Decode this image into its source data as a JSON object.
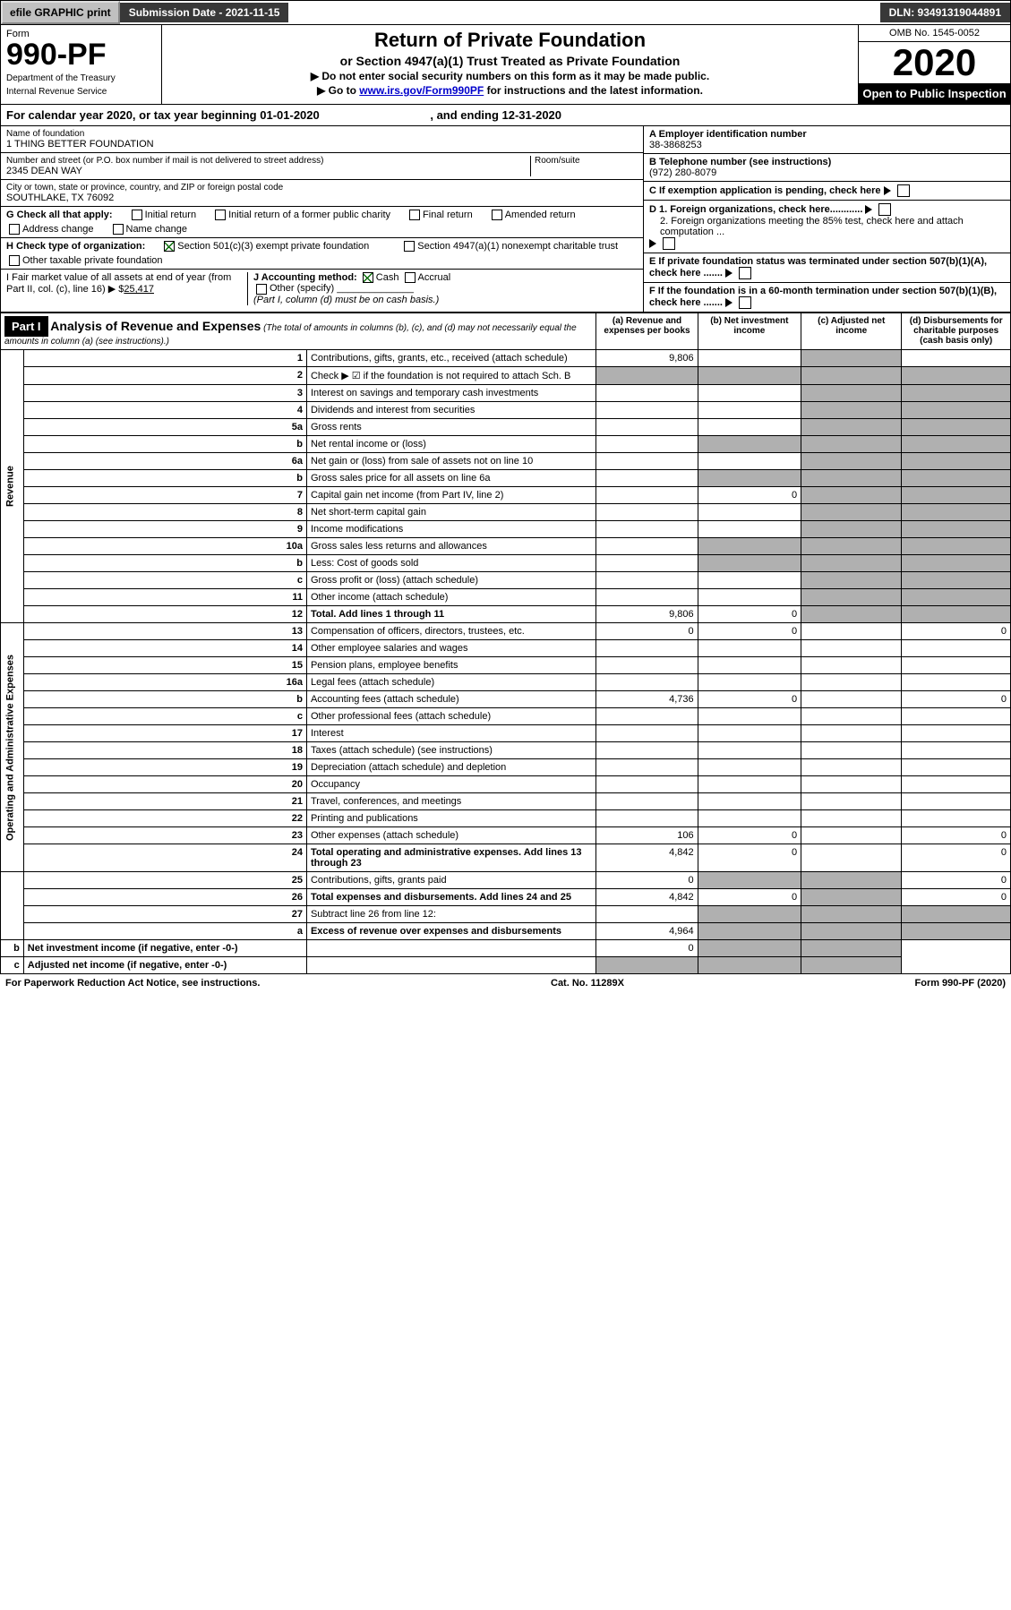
{
  "topbar": {
    "efile": "efile GRAPHIC print",
    "submission": "Submission Date - 2021-11-15",
    "dln": "DLN: 93491319044891"
  },
  "header": {
    "form": "Form",
    "number": "990-PF",
    "dept": "Department of the Treasury",
    "irs": "Internal Revenue Service",
    "title": "Return of Private Foundation",
    "subtitle": "or Section 4947(a)(1) Trust Treated as Private Foundation",
    "note1": "▶ Do not enter social security numbers on this form as it may be made public.",
    "note2_pre": "▶ Go to ",
    "note2_link": "www.irs.gov/Form990PF",
    "note2_post": " for instructions and the latest information.",
    "omb": "OMB No. 1545-0052",
    "year": "2020",
    "open": "Open to Public Inspection"
  },
  "calyear": {
    "pre": "For calendar year 2020, or tax year beginning ",
    "begin": "01-01-2020",
    "mid": " , and ending ",
    "end": "12-31-2020"
  },
  "info": {
    "name_lbl": "Name of foundation",
    "name": "1 THING BETTER FOUNDATION",
    "addr_lbl": "Number and street (or P.O. box number if mail is not delivered to street address)",
    "room_lbl": "Room/suite",
    "addr": "2345 DEAN WAY",
    "city_lbl": "City or town, state or province, country, and ZIP or foreign postal code",
    "city": "SOUTHLAKE, TX  76092",
    "ein_lbl": "A Employer identification number",
    "ein": "38-3868253",
    "tel_lbl": "B Telephone number (see instructions)",
    "tel": "(972) 280-8079",
    "c": "C If exemption application is pending, check here",
    "d1": "D 1. Foreign organizations, check here............",
    "d2": "2. Foreign organizations meeting the 85% test, check here and attach computation ...",
    "e": "E If private foundation status was terminated under section 507(b)(1)(A), check here .......",
    "f": "F If the foundation is in a 60-month termination under section 507(b)(1)(B), check here .......",
    "g": "G Check all that apply:",
    "g1": "Initial return",
    "g2": "Initial return of a former public charity",
    "g3": "Final return",
    "g4": "Amended return",
    "g5": "Address change",
    "g6": "Name change",
    "h": "H Check type of organization:",
    "h1": "Section 501(c)(3) exempt private foundation",
    "h2": "Section 4947(a)(1) nonexempt charitable trust",
    "h3": "Other taxable private foundation",
    "i_pre": "I Fair market value of all assets at end of year (from Part II, col. (c), line 16) ▶ $",
    "i_val": "25,417",
    "j": "J Accounting method:",
    "j1": "Cash",
    "j2": "Accrual",
    "j3": "Other (specify)",
    "j_note": "(Part I, column (d) must be on cash basis.)"
  },
  "part1": {
    "label": "Part I",
    "title": "Analysis of Revenue and Expenses",
    "title_note": "(The total of amounts in columns (b), (c), and (d) may not necessarily equal the amounts in column (a) (see instructions).)",
    "col_a": "(a)  Revenue and expenses per books",
    "col_b": "(b)  Net investment income",
    "col_c": "(c)  Adjusted net income",
    "col_d": "(d)  Disbursements for charitable purposes (cash basis only)",
    "revenue_label": "Revenue",
    "expenses_label": "Operating and Administrative Expenses"
  },
  "rows": [
    {
      "n": "1",
      "d": "Contributions, gifts, grants, etc., received (attach schedule)",
      "a": "9,806"
    },
    {
      "n": "2",
      "d": "Check ▶ ☑ if the foundation is not required to attach Sch. B"
    },
    {
      "n": "3",
      "d": "Interest on savings and temporary cash investments"
    },
    {
      "n": "4",
      "d": "Dividends and interest from securities"
    },
    {
      "n": "5a",
      "d": "Gross rents"
    },
    {
      "n": "b",
      "d": "Net rental income or (loss)"
    },
    {
      "n": "6a",
      "d": "Net gain or (loss) from sale of assets not on line 10"
    },
    {
      "n": "b",
      "d": "Gross sales price for all assets on line 6a"
    },
    {
      "n": "7",
      "d": "Capital gain net income (from Part IV, line 2)",
      "b": "0"
    },
    {
      "n": "8",
      "d": "Net short-term capital gain"
    },
    {
      "n": "9",
      "d": "Income modifications"
    },
    {
      "n": "10a",
      "d": "Gross sales less returns and allowances"
    },
    {
      "n": "b",
      "d": "Less: Cost of goods sold"
    },
    {
      "n": "c",
      "d": "Gross profit or (loss) (attach schedule)"
    },
    {
      "n": "11",
      "d": "Other income (attach schedule)"
    },
    {
      "n": "12",
      "d": "Total. Add lines 1 through 11",
      "a": "9,806",
      "b": "0",
      "bold": true
    },
    {
      "n": "13",
      "d": "Compensation of officers, directors, trustees, etc.",
      "a": "0",
      "b": "0",
      "dd": "0"
    },
    {
      "n": "14",
      "d": "Other employee salaries and wages"
    },
    {
      "n": "15",
      "d": "Pension plans, employee benefits"
    },
    {
      "n": "16a",
      "d": "Legal fees (attach schedule)"
    },
    {
      "n": "b",
      "d": "Accounting fees (attach schedule)",
      "a": "4,736",
      "b": "0",
      "dd": "0"
    },
    {
      "n": "c",
      "d": "Other professional fees (attach schedule)"
    },
    {
      "n": "17",
      "d": "Interest"
    },
    {
      "n": "18",
      "d": "Taxes (attach schedule) (see instructions)"
    },
    {
      "n": "19",
      "d": "Depreciation (attach schedule) and depletion"
    },
    {
      "n": "20",
      "d": "Occupancy"
    },
    {
      "n": "21",
      "d": "Travel, conferences, and meetings"
    },
    {
      "n": "22",
      "d": "Printing and publications"
    },
    {
      "n": "23",
      "d": "Other expenses (attach schedule)",
      "a": "106",
      "b": "0",
      "dd": "0"
    },
    {
      "n": "24",
      "d": "Total operating and administrative expenses. Add lines 13 through 23",
      "a": "4,842",
      "b": "0",
      "dd": "0",
      "bold": true
    },
    {
      "n": "25",
      "d": "Contributions, gifts, grants paid",
      "a": "0",
      "dd": "0"
    },
    {
      "n": "26",
      "d": "Total expenses and disbursements. Add lines 24 and 25",
      "a": "4,842",
      "b": "0",
      "dd": "0",
      "bold": true
    },
    {
      "n": "27",
      "d": "Subtract line 26 from line 12:"
    },
    {
      "n": "a",
      "d": "Excess of revenue over expenses and disbursements",
      "a": "4,964",
      "bold": true
    },
    {
      "n": "b",
      "d": "Net investment income (if negative, enter -0-)",
      "b": "0",
      "bold": true
    },
    {
      "n": "c",
      "d": "Adjusted net income (if negative, enter -0-)",
      "bold": true
    }
  ],
  "footer": {
    "left": "For Paperwork Reduction Act Notice, see instructions.",
    "mid": "Cat. No. 11289X",
    "right": "Form 990-PF (2020)"
  }
}
